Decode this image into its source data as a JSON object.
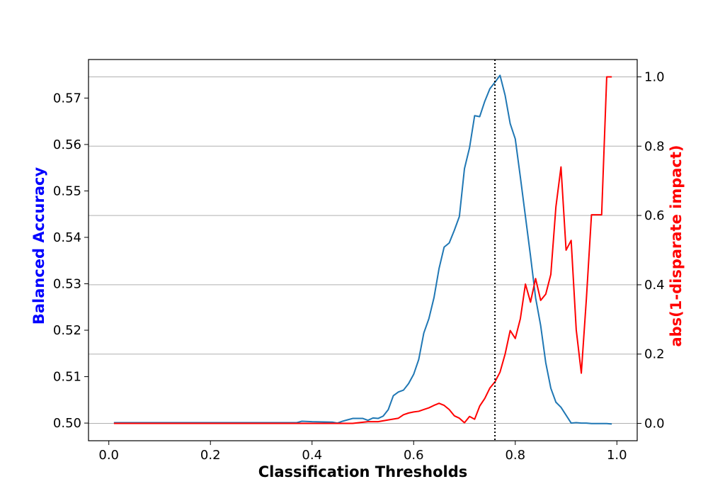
{
  "chart_data": {
    "type": "line",
    "title": "",
    "xlabel": "Classification Thresholds",
    "ylabel_left": "Balanced Accuracy",
    "ylabel_right": "abs(1-disparate impact)",
    "xlim": [
      -0.04,
      1.04
    ],
    "ylim_left": [
      0.4962,
      0.5783
    ],
    "ylim_right": [
      -0.05,
      1.05
    ],
    "x_ticks": [
      0.0,
      0.2,
      0.4,
      0.6,
      0.8,
      1.0
    ],
    "x_tick_labels": [
      "0.0",
      "0.2",
      "0.4",
      "0.6",
      "0.8",
      "1.0"
    ],
    "y_left_ticks": [
      0.5,
      0.51,
      0.52,
      0.53,
      0.54,
      0.55,
      0.56,
      0.57
    ],
    "y_left_tick_labels": [
      "0.50",
      "0.51",
      "0.52",
      "0.53",
      "0.54",
      "0.55",
      "0.56",
      "0.57"
    ],
    "y_right_ticks": [
      0.0,
      0.2,
      0.4,
      0.6,
      0.8,
      1.0
    ],
    "y_right_tick_labels": [
      "0.0",
      "0.2",
      "0.4",
      "0.6",
      "0.8",
      "1.0"
    ],
    "grid": "horizontal lines at right-axis ticks",
    "vline": 0.76,
    "colors": {
      "balanced_accuracy": "#1f77b4",
      "disparate_impact": "#ff0000",
      "left_label": "#0000ff",
      "right_label": "#ff0000",
      "grid": "#b0b0b0",
      "vline": "#000000"
    },
    "series": [
      {
        "axis": "left",
        "x": [
          0.01,
          0.37,
          0.38,
          0.4,
          0.44,
          0.45,
          0.46,
          0.47,
          0.48,
          0.49,
          0.5,
          0.51,
          0.52,
          0.53,
          0.54,
          0.55,
          0.56,
          0.57,
          0.58,
          0.59,
          0.6,
          0.61,
          0.62,
          0.63,
          0.64,
          0.65,
          0.66,
          0.67,
          0.68,
          0.69,
          0.7,
          0.71,
          0.72,
          0.73,
          0.74,
          0.75,
          0.76,
          0.77,
          0.78,
          0.79,
          0.8,
          0.81,
          0.82,
          0.83,
          0.84,
          0.85,
          0.86,
          0.87,
          0.88,
          0.89,
          0.9,
          0.91,
          0.92,
          0.93,
          0.94,
          0.95,
          0.96,
          0.97,
          0.98,
          0.99
        ],
        "y": [
          0.5001,
          0.5001,
          0.5004,
          0.5003,
          0.5002,
          0.5,
          0.5004,
          0.5007,
          0.501,
          0.501,
          0.501,
          0.5006,
          0.5011,
          0.501,
          0.5015,
          0.5029,
          0.5059,
          0.5067,
          0.5071,
          0.5085,
          0.5105,
          0.5137,
          0.5194,
          0.5225,
          0.527,
          0.5333,
          0.5379,
          0.5388,
          0.5415,
          0.5445,
          0.5548,
          0.5593,
          0.5662,
          0.566,
          0.5693,
          0.572,
          0.5734,
          0.5749,
          0.5706,
          0.5645,
          0.5612,
          0.553,
          0.5445,
          0.536,
          0.527,
          0.521,
          0.513,
          0.5075,
          0.5045,
          0.5034,
          0.5017,
          0.5,
          0.5001,
          0.5,
          0.5,
          0.4999,
          0.4999,
          0.4999,
          0.4999,
          0.4998
        ]
      },
      {
        "axis": "right",
        "x": [
          0.01,
          0.45,
          0.48,
          0.51,
          0.53,
          0.55,
          0.57,
          0.58,
          0.59,
          0.6,
          0.61,
          0.62,
          0.63,
          0.64,
          0.65,
          0.66,
          0.67,
          0.68,
          0.69,
          0.7,
          0.71,
          0.72,
          0.73,
          0.74,
          0.75,
          0.76,
          0.77,
          0.78,
          0.79,
          0.8,
          0.81,
          0.82,
          0.83,
          0.84,
          0.85,
          0.86,
          0.87,
          0.88,
          0.89,
          0.9,
          0.91,
          0.92,
          0.93,
          0.94,
          0.95,
          0.96,
          0.97,
          0.98,
          0.99
        ],
        "y": [
          0.0,
          0.0,
          0.0,
          0.005,
          0.005,
          0.01,
          0.015,
          0.025,
          0.03,
          0.033,
          0.035,
          0.04,
          0.045,
          0.052,
          0.058,
          0.052,
          0.04,
          0.022,
          0.015,
          0.002,
          0.02,
          0.012,
          0.05,
          0.072,
          0.102,
          0.12,
          0.148,
          0.2,
          0.268,
          0.245,
          0.302,
          0.402,
          0.35,
          0.418,
          0.355,
          0.373,
          0.43,
          0.625,
          0.74,
          0.5,
          0.528,
          0.27,
          0.145,
          0.36,
          0.602,
          0.602,
          0.602,
          1.0,
          1.0
        ]
      }
    ]
  }
}
